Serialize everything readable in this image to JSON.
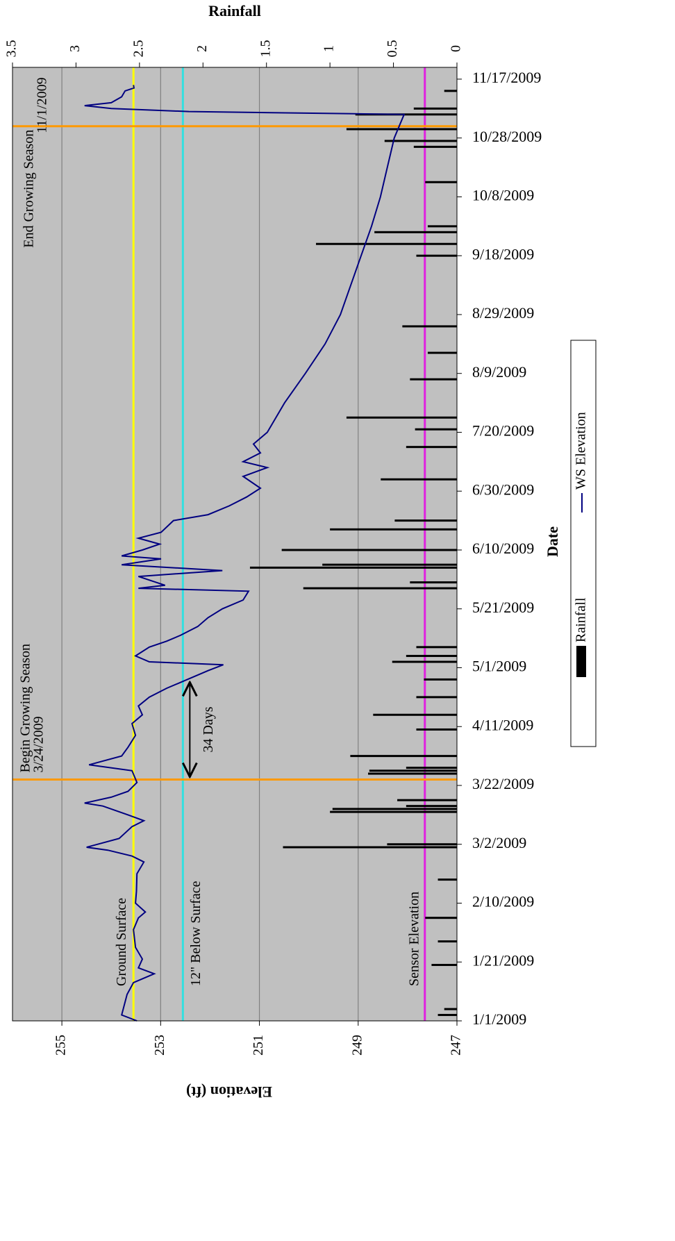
{
  "chart_data": {
    "type": "line-bar",
    "title": "Rainfall",
    "x_label": "Date",
    "y_label": "Elevation (ft)",
    "xlim": [
      "1/1/2009",
      "11/21/2009"
    ],
    "xticks": [
      "1/1/2009",
      "1/21/2009",
      "2/10/2009",
      "3/2/2009",
      "3/22/2009",
      "4/11/2009",
      "5/1/2009",
      "5/21/2009",
      "6/10/2009",
      "6/30/2009",
      "7/20/2009",
      "8/9/2009",
      "8/29/2009",
      "9/18/2009",
      "10/8/2009",
      "10/28/2009",
      "11/17/2009"
    ],
    "ylim": [
      247,
      256
    ],
    "yticks": [
      247,
      249,
      251,
      253,
      255
    ],
    "y2lim": [
      0,
      3.5
    ],
    "y2ticks": [
      0,
      0.5,
      1,
      1.5,
      2,
      2.5,
      3,
      3.5
    ],
    "grid": true,
    "background": "#c0c0c0",
    "series": [
      {
        "name": "Rainfall",
        "kind": "bar",
        "axis": "y2",
        "color": "#000000",
        "x": [
          "1/3/2009",
          "1/5/2009",
          "1/20/2009",
          "1/28/2009",
          "2/5/2009",
          "2/18/2009",
          "3/1/2009",
          "3/2/2009",
          "3/13/2009",
          "3/14/2009",
          "3/15/2009",
          "3/17/2009",
          "3/26/2009",
          "3/27/2009",
          "3/28/2009",
          "4/1/2009",
          "4/10/2009",
          "4/15/2009",
          "4/21/2009",
          "4/27/2009",
          "5/3/2009",
          "5/5/2009",
          "5/8/2009",
          "5/28/2009",
          "5/30/2009",
          "6/4/2009",
          "6/5/2009",
          "6/10/2009",
          "6/17/2009",
          "6/20/2009",
          "7/4/2009",
          "7/15/2009",
          "7/21/2009",
          "7/25/2009",
          "8/7/2009",
          "8/16/2009",
          "8/25/2009",
          "9/18/2009",
          "9/22/2009",
          "9/26/2009",
          "9/28/2009",
          "10/13/2009",
          "10/25/2009",
          "10/27/2009",
          "10/31/2009",
          "11/5/2009",
          "11/7/2009",
          "11/13/2009"
        ],
        "values": [
          0.15,
          0.1,
          0.2,
          0.15,
          0.25,
          0.15,
          1.37,
          0.55,
          1.0,
          0.98,
          0.4,
          0.47,
          0.7,
          0.69,
          0.4,
          0.84,
          0.32,
          0.66,
          0.32,
          0.26,
          0.51,
          0.4,
          0.32,
          1.21,
          0.37,
          1.63,
          1.06,
          1.38,
          1.0,
          0.49,
          0.6,
          0.4,
          0.33,
          0.87,
          0.37,
          0.23,
          0.43,
          0.32,
          1.11,
          0.65,
          0.23,
          0.25,
          0.34,
          0.57,
          0.87,
          0.8,
          0.34,
          0.1
        ]
      },
      {
        "name": "WS Elevation",
        "kind": "line",
        "color": "#000080",
        "x": [
          "1/1/2009",
          "1/3/2009",
          "1/10/2009",
          "1/14/2009",
          "1/17/2009",
          "1/19/2009",
          "1/22/2009",
          "1/26/2009",
          "2/1/2009",
          "2/5/2009",
          "2/7/2009",
          "2/10/2009",
          "2/14/2009",
          "2/20/2009",
          "2/24/2009",
          "2/26/2009",
          "2/28/2009",
          "3/1/2009",
          "3/4/2009",
          "3/8/2009",
          "3/10/2009",
          "3/12/2009",
          "3/15/2009",
          "3/16/2009",
          "3/18/2009",
          "3/20/2009",
          "3/23/2009",
          "3/27/2009",
          "3/29/2009",
          "4/1/2009",
          "4/4/2009",
          "4/8/2009",
          "4/12/2009",
          "4/15/2009",
          "4/18/2009",
          "4/21/2009",
          "4/24/2009",
          "4/26/2009",
          "4/28/2009",
          "4/30/2009",
          "5/2/2009",
          "5/3/2009",
          "5/5/2009",
          "5/8/2009",
          "5/10/2009",
          "5/12/2009",
          "5/15/2009",
          "5/18/2009",
          "5/21/2009",
          "5/24/2009",
          "5/27/2009",
          "5/28/2009",
          "5/29/2009",
          "6/1/2009",
          "6/3/2009",
          "6/5/2009",
          "6/7/2009",
          "6/8/2009",
          "6/10/2009",
          "6/12/2009",
          "6/14/2009",
          "6/16/2009",
          "6/20/2009",
          "6/22/2009",
          "6/25/2009",
          "6/28/2009",
          "7/1/2009",
          "7/5/2009",
          "7/8/2009",
          "7/10/2009",
          "7/13/2009",
          "7/16/2009",
          "7/20/2009",
          "7/30/2009",
          "8/9/2009",
          "8/19/2009",
          "8/29/2009",
          "9/8/2009",
          "9/18/2009",
          "9/28/2009",
          "10/8/2009",
          "10/18/2009",
          "10/28/2009",
          "11/5/2009",
          "11/6/2009",
          "11/7/2009",
          "11/8/2009",
          "11/9/2009",
          "11/11/2009",
          "11/13/2009",
          "11/14/2009",
          "11/15/2009"
        ],
        "values": [
          253.48,
          253.79,
          253.68,
          253.55,
          253.13,
          253.45,
          253.37,
          253.51,
          253.55,
          253.45,
          253.31,
          253.51,
          253.49,
          253.48,
          253.34,
          253.58,
          254.07,
          254.5,
          253.84,
          253.58,
          253.34,
          253.66,
          254.17,
          254.54,
          254.0,
          253.66,
          253.48,
          253.58,
          254.45,
          253.79,
          253.66,
          253.51,
          253.58,
          253.37,
          253.45,
          253.23,
          252.88,
          252.6,
          252.32,
          252.04,
          251.73,
          253.23,
          253.51,
          253.23,
          252.88,
          252.6,
          252.25,
          252.04,
          251.75,
          251.33,
          251.22,
          253.45,
          252.91,
          253.45,
          251.75,
          253.79,
          252.99,
          253.79,
          253.37,
          253.02,
          253.45,
          252.99,
          252.74,
          252.04,
          251.61,
          251.26,
          250.98,
          251.33,
          250.84,
          251.33,
          250.98,
          251.12,
          250.84,
          250.49,
          250.07,
          249.67,
          249.36,
          249.15,
          248.94,
          248.73,
          248.55,
          248.41,
          248.27,
          248.07,
          252.43,
          254.0,
          254.54,
          254.0,
          253.79,
          253.72,
          253.54,
          253.55
        ]
      }
    ],
    "reference_lines": [
      {
        "label": "Ground Surface",
        "value": 253.55,
        "color": "#ffff00"
      },
      {
        "label": "12\" Below Surface",
        "value": 252.55,
        "color": "#33e0e0"
      },
      {
        "label": "Sensor Elevation",
        "value": 247.65,
        "color": "#e020e0"
      }
    ],
    "date_lines": [
      {
        "date": "3/24/2009",
        "label": [
          "Begin Growing Season",
          "3/24/2009"
        ],
        "color": "#ff9900"
      },
      {
        "date": "11/1/2009",
        "label": [
          "End Growing Season",
          "11/1/2009"
        ],
        "color": "#ff9900"
      }
    ],
    "span_annotation": {
      "text": "34 Days",
      "from": "3/24/2009",
      "to": "4/27/2009",
      "value": 252.55
    }
  }
}
